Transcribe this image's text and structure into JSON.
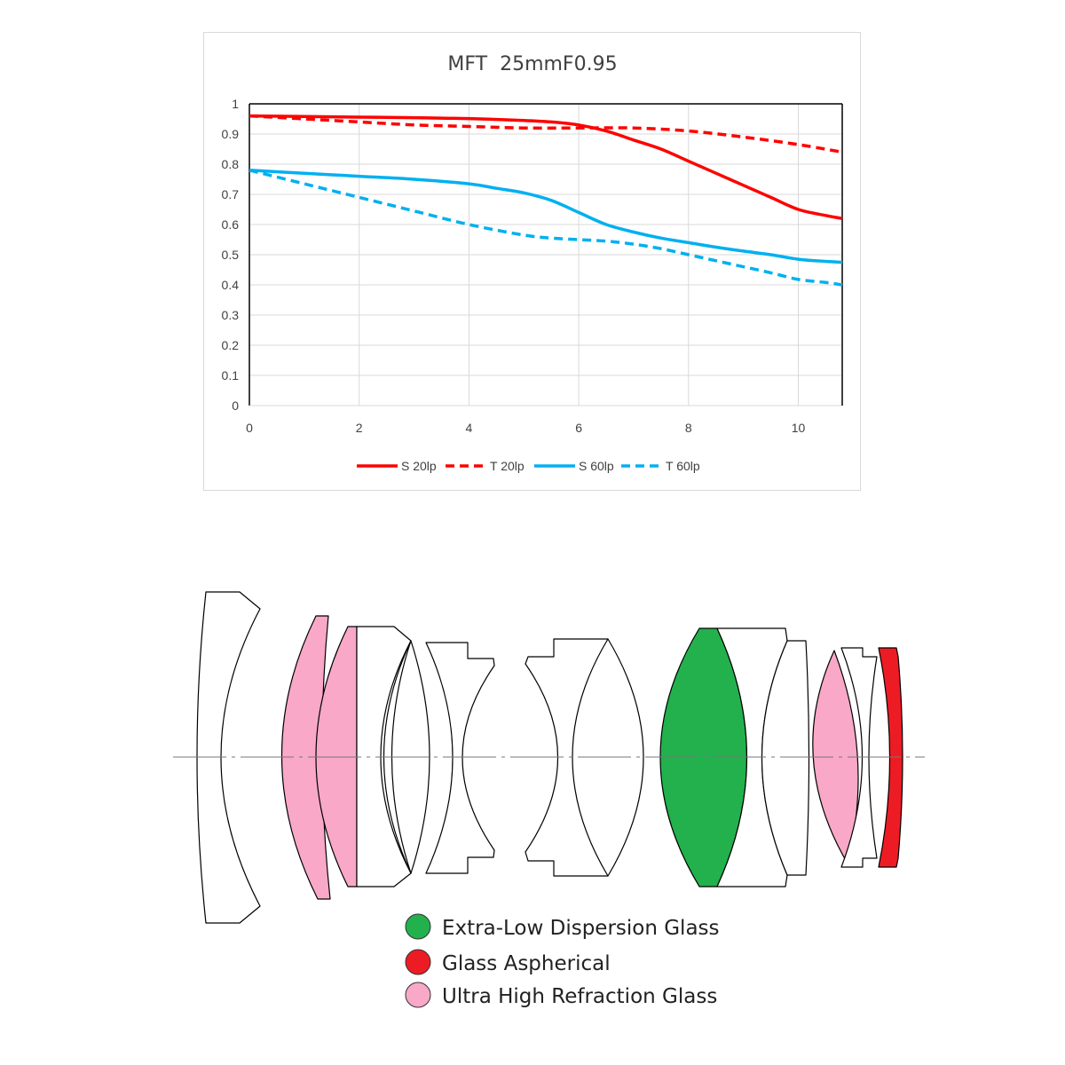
{
  "chart_data": {
    "type": "line",
    "title": "MFT  25mmF0.95",
    "xlabel": "",
    "ylabel": "",
    "xlim": [
      0,
      10.8
    ],
    "ylim": [
      0,
      1
    ],
    "xticks": [
      "0",
      "2",
      "4",
      "6",
      "8",
      "10"
    ],
    "yticks": [
      "0",
      "0.1",
      "0.2",
      "0.3",
      "0.4",
      "0.5",
      "0.6",
      "0.7",
      "0.8",
      "0.9",
      "1"
    ],
    "grid": true,
    "legend_position": "bottom",
    "series": [
      {
        "name": "S 20lp",
        "color": "#ff0000",
        "style": "solid",
        "x": [
          0,
          1,
          2,
          3,
          4,
          5,
          5.5,
          6,
          6.5,
          7,
          7.5,
          8,
          8.5,
          9,
          9.5,
          10,
          10.5,
          10.8
        ],
        "y": [
          0.96,
          0.958,
          0.956,
          0.954,
          0.951,
          0.945,
          0.94,
          0.93,
          0.91,
          0.88,
          0.85,
          0.81,
          0.77,
          0.73,
          0.69,
          0.65,
          0.63,
          0.62
        ]
      },
      {
        "name": "T 20lp",
        "color": "#ff0000",
        "style": "dashed",
        "x": [
          0,
          1,
          2,
          3,
          4,
          5,
          6,
          7,
          8,
          9,
          10,
          10.8
        ],
        "y": [
          0.96,
          0.95,
          0.94,
          0.93,
          0.925,
          0.92,
          0.92,
          0.92,
          0.91,
          0.89,
          0.865,
          0.84
        ]
      },
      {
        "name": "S 60lp",
        "color": "#00b0f0",
        "style": "solid",
        "x": [
          0,
          1,
          2,
          3,
          4,
          4.5,
          5,
          5.5,
          6,
          6.5,
          7,
          7.5,
          8,
          8.5,
          9,
          9.5,
          10,
          10.5,
          10.8
        ],
        "y": [
          0.78,
          0.77,
          0.76,
          0.75,
          0.735,
          0.72,
          0.705,
          0.68,
          0.64,
          0.6,
          0.575,
          0.555,
          0.54,
          0.525,
          0.512,
          0.5,
          0.485,
          0.478,
          0.475
        ]
      },
      {
        "name": "T 60lp",
        "color": "#00b0f0",
        "style": "dashed",
        "x": [
          0,
          1,
          2,
          3,
          4,
          5,
          5.5,
          6,
          6.5,
          7,
          7.5,
          8,
          8.5,
          9,
          9.5,
          10,
          10.5,
          10.8
        ],
        "y": [
          0.78,
          0.735,
          0.69,
          0.645,
          0.6,
          0.565,
          0.555,
          0.55,
          0.545,
          0.535,
          0.52,
          0.5,
          0.48,
          0.46,
          0.44,
          0.418,
          0.408,
          0.4
        ]
      }
    ]
  },
  "legend": {
    "items": [
      {
        "label": "Extra-Low Dispersion Glass",
        "color": "#22b14c"
      },
      {
        "label": "Glass Aspherical",
        "color": "#ed1c24"
      },
      {
        "label": "Ultra High Refraction Glass",
        "color": "#f9a8c8"
      }
    ]
  }
}
